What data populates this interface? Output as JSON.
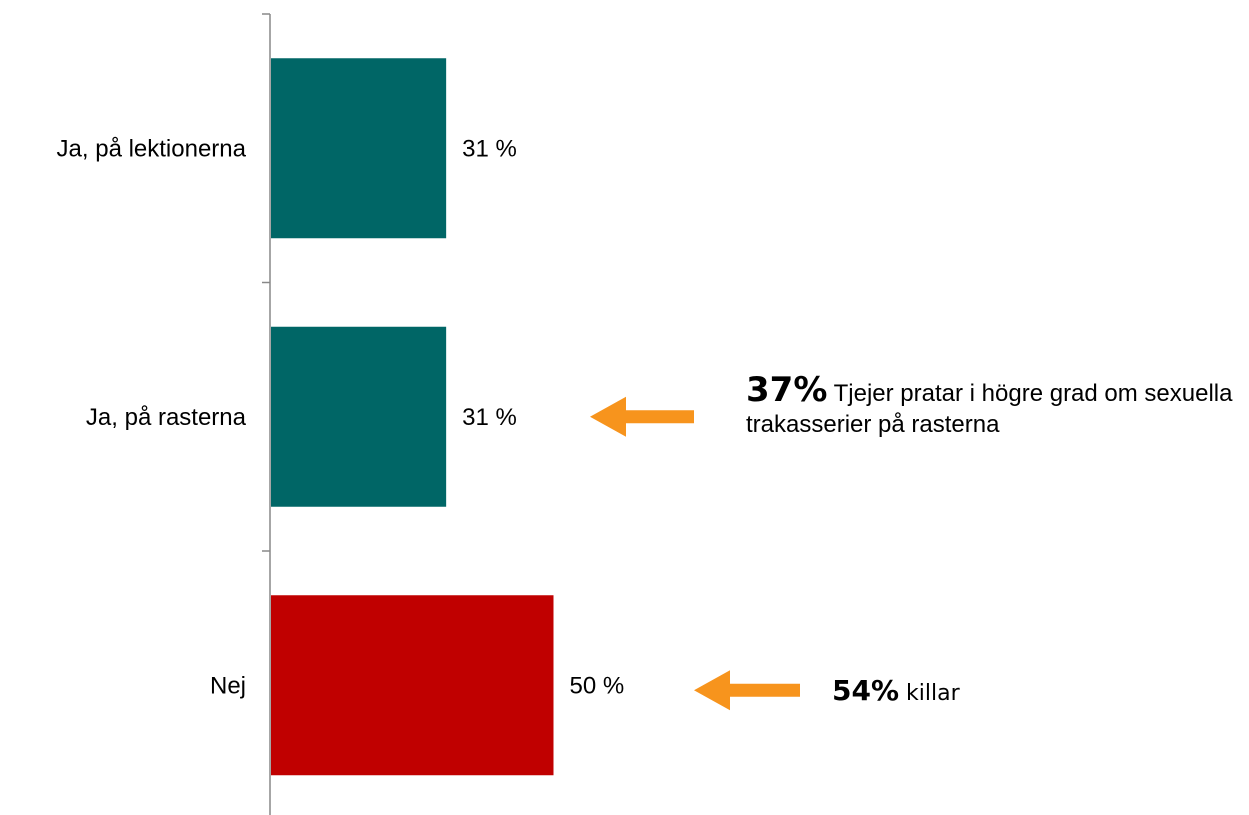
{
  "chart_data": {
    "type": "bar",
    "orientation": "horizontal",
    "categories": [
      "Ja, på lektionerna",
      "Ja, på rasterna",
      "Nej"
    ],
    "values": [
      31,
      31,
      50
    ],
    "value_labels": [
      "31 %",
      "31 %",
      "50 %"
    ],
    "xlim": [
      0,
      100
    ],
    "grid": false,
    "bar_colors": [
      "#006666",
      "#006666",
      "#c00000"
    ]
  },
  "annotations": [
    {
      "highlight": "37%",
      "text": " Tjejer pratar i högre grad om sexuella trakasserier på rasterna",
      "category": "Ja, på rasterna"
    },
    {
      "highlight": "54%",
      "text": " killar",
      "category": "Nej"
    }
  ],
  "colors": {
    "arrow": "#f7941d",
    "axis": "#888888"
  },
  "icons": {
    "arrow": "arrow-left-icon"
  }
}
